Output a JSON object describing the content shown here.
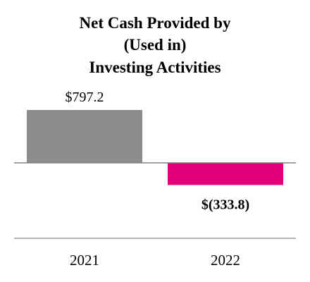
{
  "chart_data": {
    "type": "bar",
    "title_lines": [
      "Net Cash Provided by",
      "(Used in)",
      "Investing Activities"
    ],
    "categories": [
      "2021",
      "2022"
    ],
    "values": [
      797.2,
      -333.8
    ],
    "data_labels": [
      "$797.2",
      "$(333.8)"
    ],
    "colors": [
      "#8c8c8c",
      "#e2007a"
    ],
    "label_bold": [
      false,
      true
    ],
    "zero_line_color": "#808080",
    "axis_line_color": "#9a9a9a",
    "grid": false,
    "legend": "none"
  }
}
